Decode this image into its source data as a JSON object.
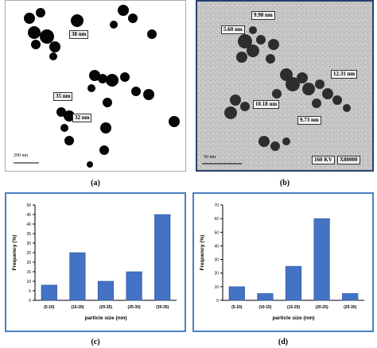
{
  "panel_a": {
    "label": "(a)",
    "scale_bar": "200 nm",
    "annotations": [
      "38 nm",
      "35 nm",
      "32 nm"
    ]
  },
  "panel_b": {
    "label": "(b)",
    "scale_bar": "50 nm",
    "annotations": [
      "9.98 nm",
      "5.60 nm",
      "12.31 nm",
      "10.18 nm",
      "9.73 nm"
    ],
    "info": "160 KV",
    "magnification": "X80000"
  },
  "panel_c": {
    "label": "(c)"
  },
  "panel_d": {
    "label": "(d)"
  },
  "colors": {
    "bar": "#4472c4",
    "frame": "#4a7ec4"
  },
  "chart_data": [
    {
      "type": "bar",
      "categories": [
        "(5-10)",
        "(10-20)",
        "(20-25)",
        "(25-30)",
        "(30-35)"
      ],
      "values": [
        8,
        25,
        10,
        15,
        45
      ],
      "xlabel": "particle size (nm)",
      "ylabel": "Frequency (%)",
      "ylim": [
        0,
        50
      ],
      "yticks": [
        "0",
        "5",
        "10",
        "15",
        "20",
        "25",
        "30",
        "35",
        "40",
        "45",
        "50"
      ]
    },
    {
      "type": "bar",
      "categories": [
        "(5-10)",
        "(10-15)",
        "(15-20)",
        "(20-25)",
        "(25-30)"
      ],
      "values": [
        10,
        5,
        25,
        60,
        5
      ],
      "xlabel": "particle size (nm)",
      "ylabel": "Frequency (%)",
      "ylim": [
        0,
        70
      ],
      "yticks": [
        "0",
        "10",
        "20",
        "30",
        "40",
        "50",
        "60",
        "70"
      ]
    }
  ]
}
